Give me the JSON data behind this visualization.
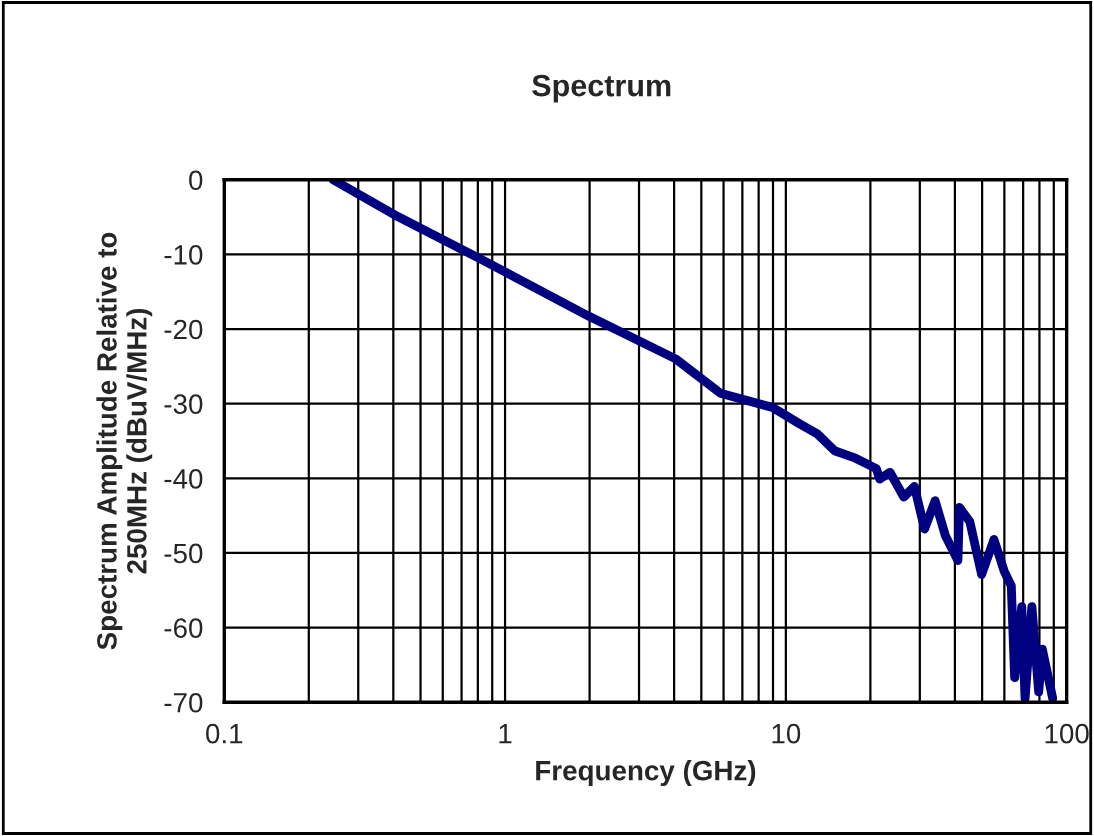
{
  "chart_data": {
    "type": "line",
    "title": "Spectrum",
    "xlabel": "Frequency (GHz)",
    "ylabel": "Spectrum Amplitude Relative to\n250MHz (dBuV/MHz)",
    "log": "x",
    "grid": true,
    "legend": false,
    "marker": "none",
    "line_style": "solid",
    "xlim": [
      0.1,
      100
    ],
    "xticks": [
      0.1,
      1,
      10,
      100
    ],
    "ylim": [
      -70,
      0
    ],
    "yticks": [
      -70,
      -60,
      -50,
      -40,
      -30,
      -20,
      -10,
      0
    ],
    "series": [
      {
        "color": "#000080",
        "x": [
          0.244,
          0.418,
          0.826,
          1.99,
          4.05,
          5.85,
          8.96,
          11.2,
          12.9,
          14.9,
          17.7,
          21.0,
          21.6,
          23.5,
          26.3,
          28.7,
          31.2,
          34.0,
          37.0,
          41.0,
          41.5,
          45.2,
          49.8,
          55.1,
          60.0,
          63.5,
          65.3,
          69.2,
          71.1,
          75.2,
          79.5,
          81.9,
          89.2
        ],
        "values": [
          0,
          -5.0,
          -10.7,
          -18.3,
          -24.0,
          -28.6,
          -30.5,
          -32.7,
          -34.0,
          -36.3,
          -37.3,
          -38.7,
          -40.1,
          -39.2,
          -42.5,
          -41.1,
          -46.8,
          -43.0,
          -47.7,
          -51.0,
          -43.9,
          -45.8,
          -52.9,
          -48.2,
          -52.5,
          -54.4,
          -66.7,
          -57.2,
          -69.5,
          -57.2,
          -68.6,
          -62.9,
          -69.5
        ]
      }
    ]
  }
}
